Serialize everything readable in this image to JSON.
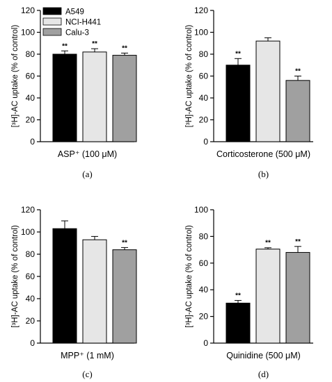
{
  "legend": [
    {
      "label": "A549",
      "color": "#000000"
    },
    {
      "label": "NCI-H441",
      "color": "#e6e6e6"
    },
    {
      "label": "Calu-3",
      "color": "#a0a0a0"
    }
  ],
  "chart_data": [
    {
      "type": "bar",
      "panel": "(a)",
      "xlabel": "ASP⁺ (100 μM)",
      "ylabel": "[³H]-AC uptake (% of control)",
      "ylim": [
        0,
        120
      ],
      "yticks": [
        "0",
        "20",
        "40",
        "60",
        "80",
        "100",
        "120"
      ],
      "series": [
        {
          "name": "A549",
          "value": 80,
          "error": 3,
          "sig": "**"
        },
        {
          "name": "NCI-H441",
          "value": 82,
          "error": 3,
          "sig": "**"
        },
        {
          "name": "Calu-3",
          "value": 79,
          "error": 2,
          "sig": "**"
        }
      ]
    },
    {
      "type": "bar",
      "panel": "(b)",
      "xlabel": "Corticosterone (500 μM)",
      "ylabel": "[³H]-AC uptake (% of control)",
      "ylim": [
        0,
        120
      ],
      "yticks": [
        "0",
        "20",
        "40",
        "60",
        "80",
        "100",
        "120"
      ],
      "series": [
        {
          "name": "A549",
          "value": 70,
          "error": 6,
          "sig": "**"
        },
        {
          "name": "NCI-H441",
          "value": 92,
          "error": 3,
          "sig": ""
        },
        {
          "name": "Calu-3",
          "value": 56,
          "error": 4,
          "sig": "**"
        }
      ]
    },
    {
      "type": "bar",
      "panel": "(c)",
      "xlabel": "MPP⁺ (1 mM)",
      "ylabel": "[³H]-AC uptake (% of control)",
      "ylim": [
        0,
        120
      ],
      "yticks": [
        "0",
        "20",
        "40",
        "60",
        "80",
        "100",
        "120"
      ],
      "series": [
        {
          "name": "A549",
          "value": 103,
          "error": 7,
          "sig": ""
        },
        {
          "name": "NCI-H441",
          "value": 93,
          "error": 3,
          "sig": ""
        },
        {
          "name": "Calu-3",
          "value": 84,
          "error": 2,
          "sig": "**"
        }
      ]
    },
    {
      "type": "bar",
      "panel": "(d)",
      "xlabel": "Quinidine (500 μM)",
      "ylabel": "[³H]-AC uptake (% of control)",
      "ylim": [
        0,
        100
      ],
      "yticks": [
        "0",
        "20",
        "40",
        "60",
        "80",
        "100"
      ],
      "series": [
        {
          "name": "A549",
          "value": 30,
          "error": 2,
          "sig": "**"
        },
        {
          "name": "NCI-H441",
          "value": 70.5,
          "error": 1,
          "sig": "**"
        },
        {
          "name": "Calu-3",
          "value": 68,
          "error": 4.5,
          "sig": "**"
        }
      ]
    }
  ]
}
